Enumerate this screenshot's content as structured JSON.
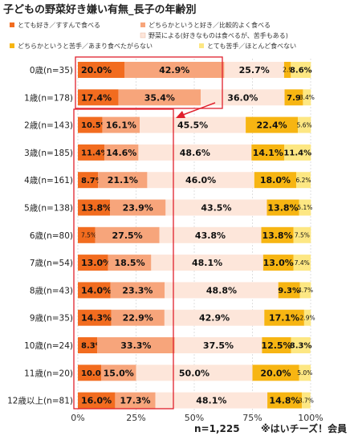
{
  "chart_data": {
    "type": "bar",
    "stacked": "100%",
    "orientation": "horizontal",
    "title": "子どもの野菜好き嫌い有無_長子の年齢別",
    "categories": [
      "0歳(n=35)",
      "1歳(n=178)",
      "2歳(n=143)",
      "3歳(n=185)",
      "4歳(n=161)",
      "5歳(n=138)",
      "6歳(n=80)",
      "7歳(n=54)",
      "8歳(n=43)",
      "9歳(n=35)",
      "10歳(n=24)",
      "11歳(n=20)",
      "12歳以上(n=81)"
    ],
    "series": [
      {
        "name": "とても好き／すすんで食べる",
        "color": "#f26c1f",
        "values": [
          20.0,
          17.4,
          10.5,
          11.4,
          8.7,
          13.8,
          7.5,
          13.0,
          14.0,
          14.3,
          8.3,
          10.0,
          16.0
        ],
        "labels": [
          "20.0%",
          "17.4%",
          "10.5%",
          "11.4%",
          "8.7%",
          "13.8%",
          "7.5%",
          "13.0%",
          "14.0%",
          "14.3%",
          "8.3%",
          "10.0%",
          "16.0%"
        ]
      },
      {
        "name": "どちらかというと好き／比較的よく食べる",
        "color": "#f7a57b",
        "values": [
          42.9,
          35.4,
          16.1,
          14.6,
          21.1,
          23.9,
          27.5,
          18.5,
          23.3,
          22.9,
          33.3,
          15.0,
          17.3
        ],
        "labels": [
          "42.9%",
          "35.4%",
          "16.1%",
          "14.6%",
          "21.1%",
          "23.9%",
          "27.5%",
          "18.5%",
          "23.3%",
          "22.9%",
          "33.3%",
          "15.0%",
          "17.3%"
        ]
      },
      {
        "name": "野菜による(好きなものは食べるが、苦手もある)",
        "color": "#fde6da",
        "values": [
          25.7,
          36.0,
          45.5,
          48.6,
          46.0,
          43.5,
          43.8,
          48.1,
          48.8,
          42.9,
          37.5,
          50.0,
          48.1
        ],
        "labels": [
          "25.7%",
          "36.0%",
          "45.5%",
          "48.6%",
          "46.0%",
          "43.5%",
          "43.8%",
          "48.1%",
          "48.8%",
          "42.9%",
          "37.5%",
          "50.0%",
          "48.1%"
        ]
      },
      {
        "name": "どちらかというと苦手／あまり食べたがらない",
        "color": "#f7b512",
        "values": [
          2.9,
          7.9,
          22.4,
          14.1,
          18.0,
          13.8,
          13.8,
          13.0,
          9.3,
          17.1,
          12.5,
          20.0,
          14.8
        ],
        "labels": [
          "2.9",
          "7.9",
          "22.4%",
          "14.1%",
          "18.0%",
          "13.8%",
          "13.8%",
          "13.0%",
          "9.3%",
          "17.1%",
          "12.5%",
          "20.0%",
          "14.8%"
        ]
      },
      {
        "name": "とても苦手／ほとんど食べない",
        "color": "#fde783",
        "values": [
          8.6,
          3.4,
          5.6,
          11.4,
          6.2,
          5.1,
          7.5,
          7.4,
          4.7,
          2.9,
          8.3,
          5.0,
          3.7
        ],
        "labels": [
          "8.6%",
          "3.4%",
          "5.6%",
          "11.4%",
          "6.2%",
          "5.1%",
          "7.5%",
          "7.4%",
          "4.7%",
          "2.9%",
          "8.3%",
          "5.0%",
          "3.7%"
        ]
      }
    ],
    "xlim": [
      0,
      100
    ],
    "x_ticks": [
      "0%",
      "25%",
      "50%",
      "75%",
      "100%"
    ],
    "legend_position": "top",
    "annotations": [
      "n=1,225",
      "※はいチーズ！会員"
    ],
    "highlight_color": "#e0202c"
  }
}
